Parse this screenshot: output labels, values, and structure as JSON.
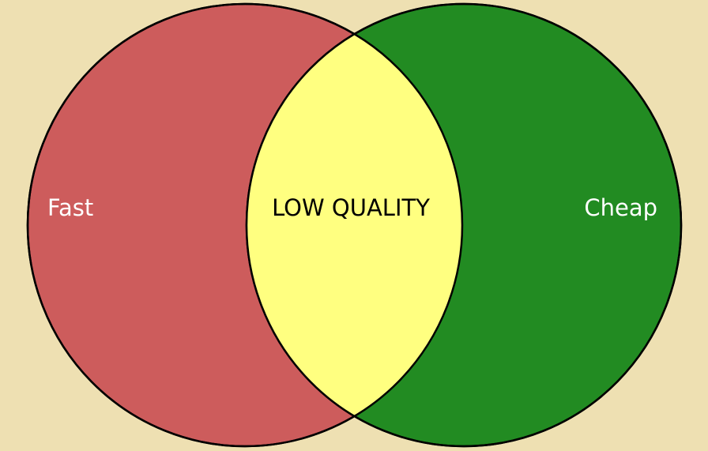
{
  "sets": [
    {
      "id": "fast",
      "label": "Fast",
      "color": "#CD5C5C",
      "label_color": "#FFFFFF"
    },
    {
      "id": "cheap",
      "label": "Cheap",
      "color": "#228B22",
      "label_color": "#FFFFFF"
    }
  ],
  "intersection": {
    "label": "LOW QUALITY",
    "color": "#FFFF80",
    "label_color": "#000000"
  },
  "background_color": "#EEE0B2",
  "outline_color": "#000000"
}
